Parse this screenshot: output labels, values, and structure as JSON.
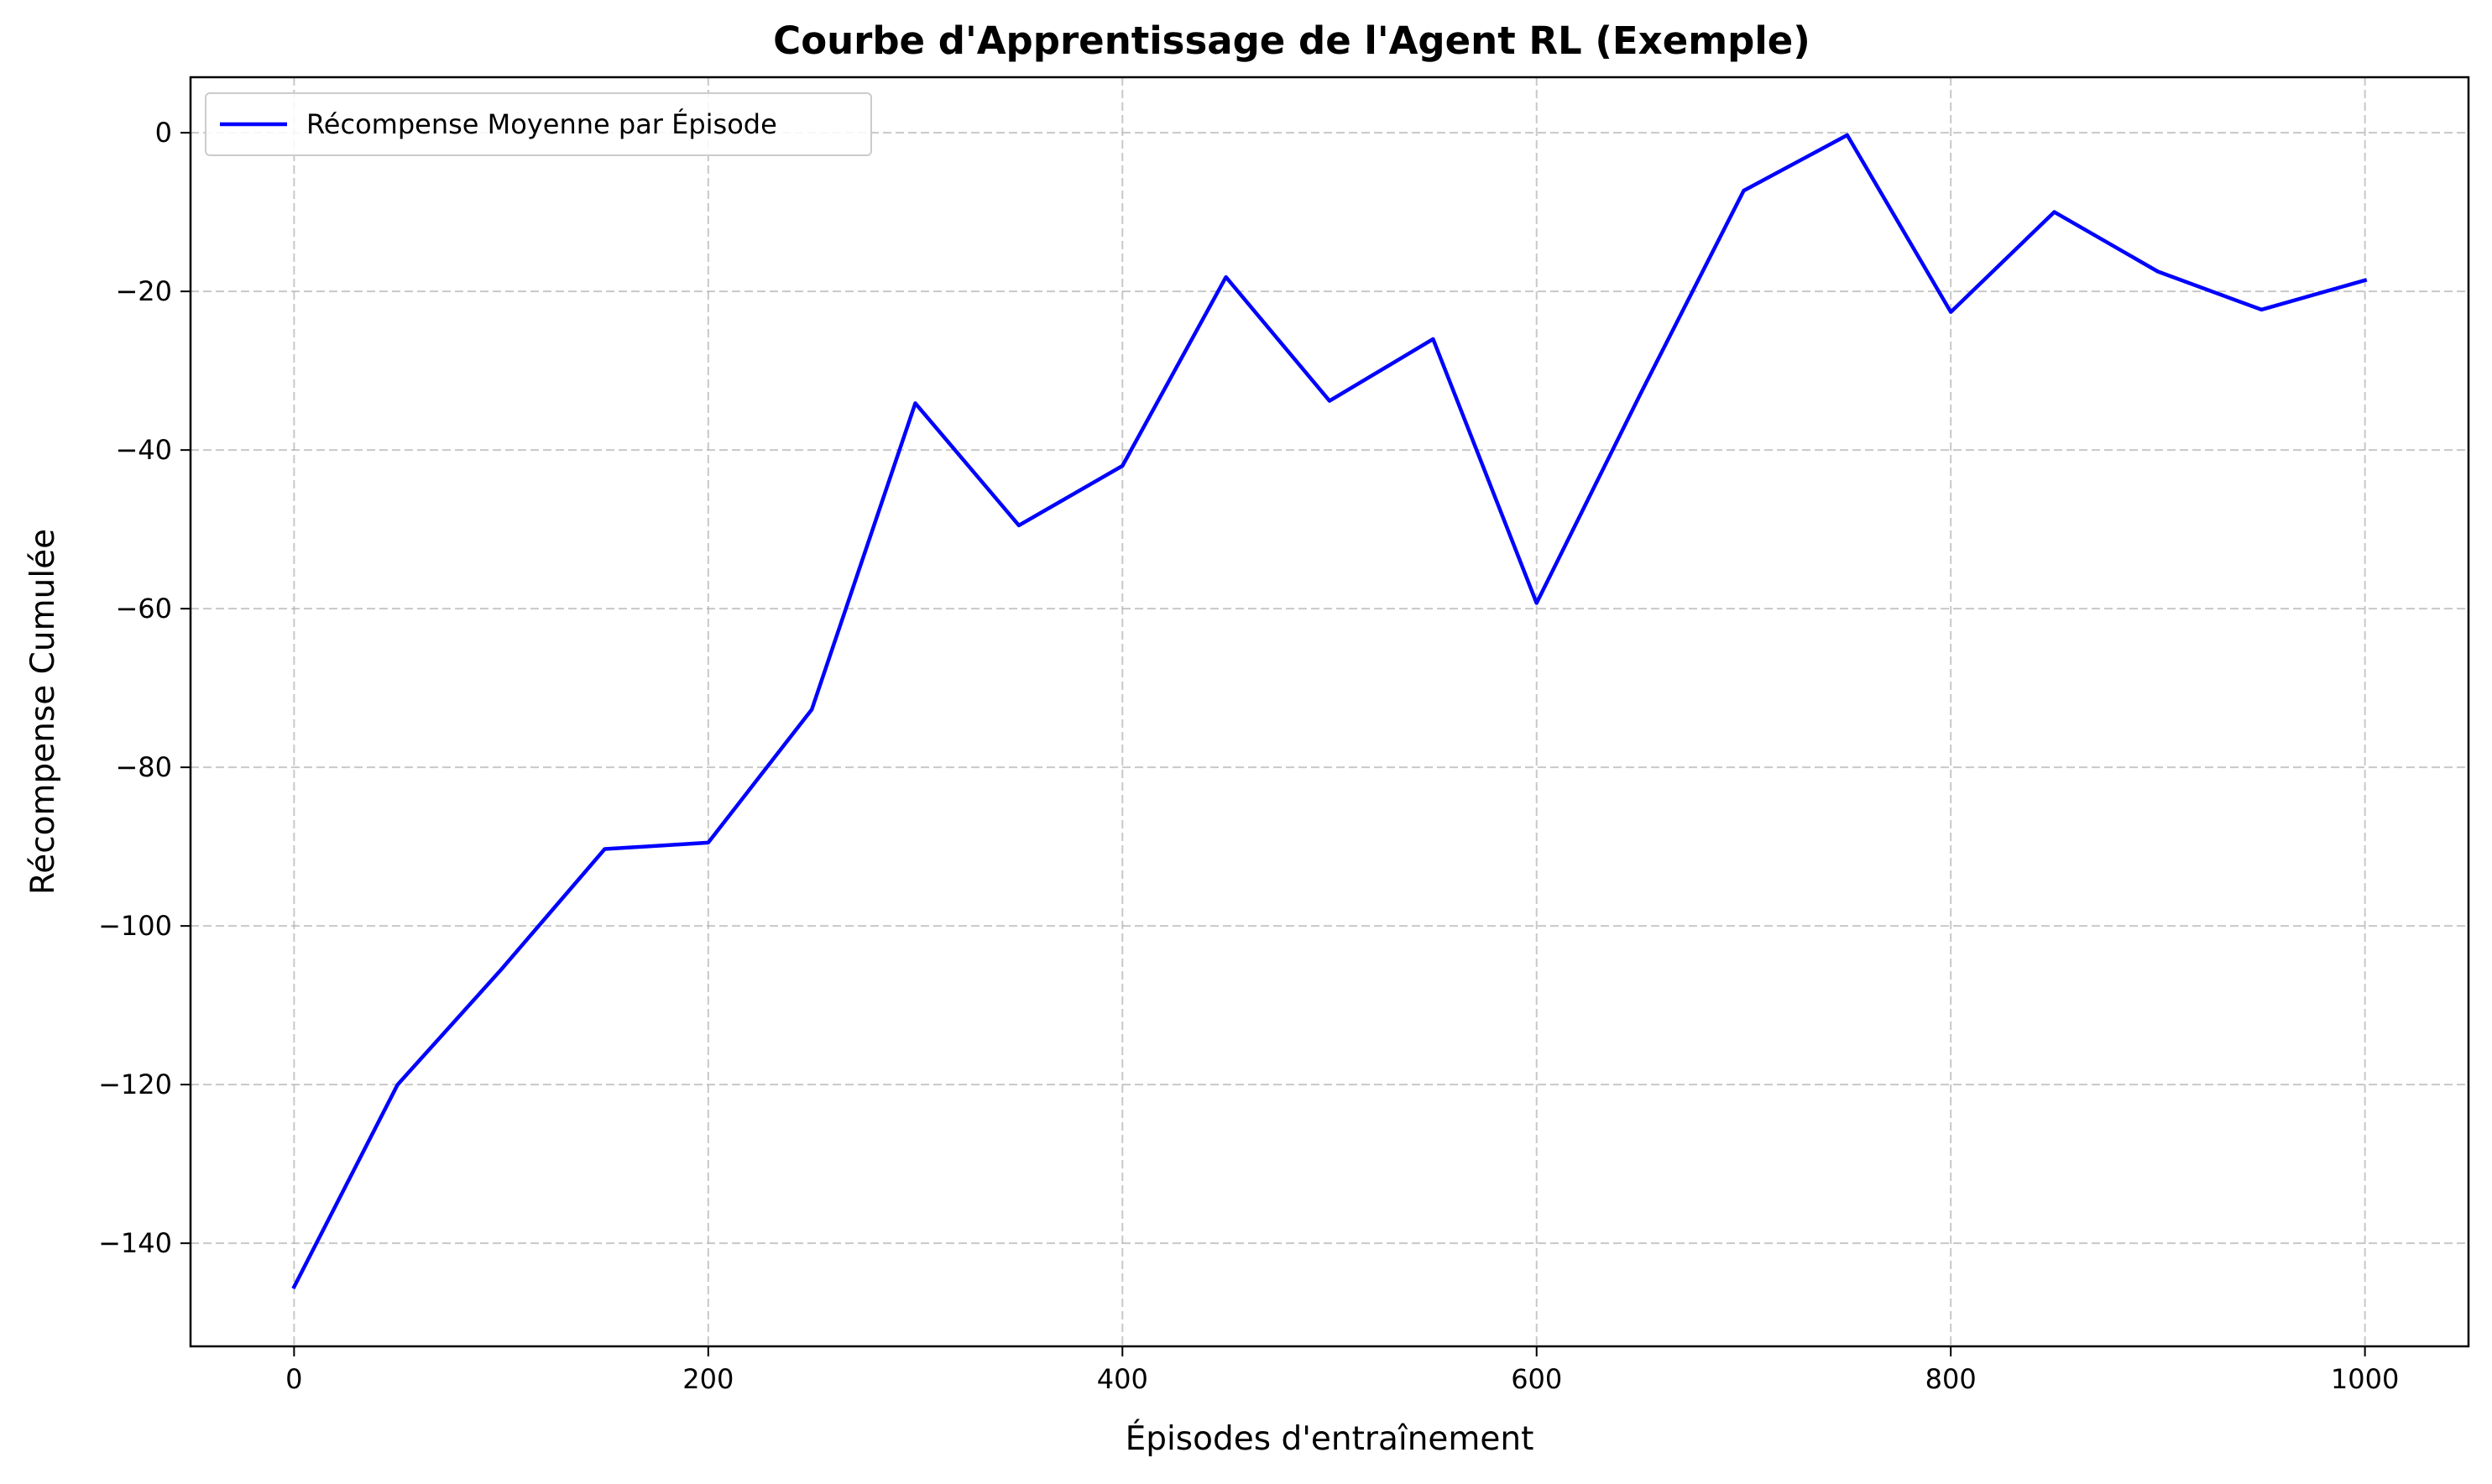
{
  "chart_data": {
    "type": "line",
    "title": "Courbe d'Apprentissage de l'Agent RL (Exemple)",
    "xlabel": "Épisodes d'entraînement",
    "ylabel": "Récompense Cumulée",
    "xlim": [
      -50,
      1050
    ],
    "ylim": [
      -153,
      7
    ],
    "xticks": [
      0,
      200,
      400,
      600,
      800,
      1000
    ],
    "xtick_labels": [
      "0",
      "200",
      "400",
      "600",
      "800",
      "1000"
    ],
    "yticks": [
      0,
      -20,
      -40,
      -60,
      -80,
      -100,
      -120,
      -140
    ],
    "ytick_labels": [
      "0",
      "−20",
      "−40",
      "−60",
      "−80",
      "−100",
      "−120",
      "−140"
    ],
    "grid": true,
    "legend_position": "top-left",
    "series": [
      {
        "name": "Récompense Moyenne par Épisode",
        "color": "#0000ff",
        "x": [
          0,
          50,
          100,
          150,
          200,
          250,
          300,
          350,
          400,
          450,
          500,
          550,
          600,
          650,
          700,
          750,
          800,
          850,
          900,
          950,
          1000
        ],
        "y": [
          -145.5,
          -120,
          -105.5,
          -90.3,
          -89.5,
          -72.7,
          -34.1,
          -49.5,
          -42,
          -18.2,
          -33.8,
          -26,
          -59.3,
          -33,
          -7.3,
          -0.3,
          -22.6,
          -10,
          -17.5,
          -22.3,
          -18.6
        ]
      }
    ]
  }
}
